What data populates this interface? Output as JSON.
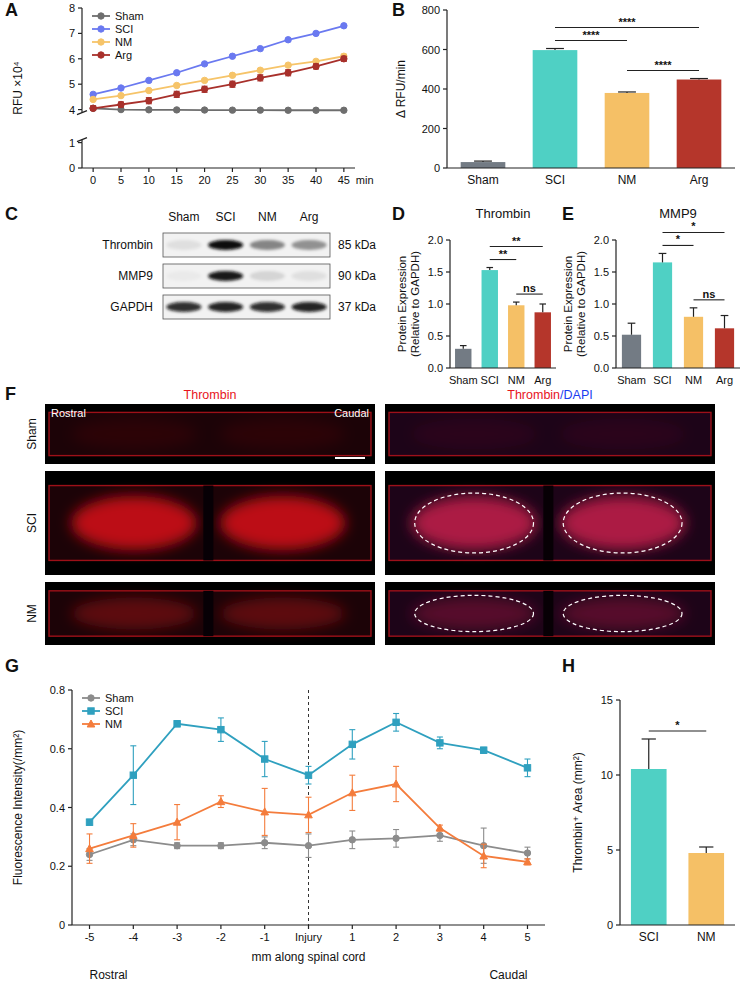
{
  "chart_data": [
    {
      "panel": "A",
      "type": "line",
      "y_label": "RFU ×10⁴",
      "x_label": "min",
      "x": [
        0,
        5,
        10,
        15,
        20,
        25,
        30,
        35,
        40,
        45
      ],
      "xlim": [
        -2,
        47
      ],
      "xticks": [
        0,
        5,
        10,
        15,
        20,
        25,
        30,
        35,
        40,
        45
      ],
      "ylim": [
        0,
        8
      ],
      "yticks": [
        0,
        1,
        4,
        5,
        6,
        7,
        8
      ],
      "legend": "upper left",
      "marker": "circle",
      "series": [
        {
          "name": "Sham",
          "color": "#6e6e6e",
          "values": [
            4.05,
            4.0,
            3.98,
            3.97,
            3.96,
            3.95,
            3.95,
            3.94,
            3.94,
            3.94
          ]
        },
        {
          "name": "SCI",
          "color": "#6a79f0",
          "values": [
            4.6,
            4.85,
            5.15,
            5.45,
            5.8,
            6.1,
            6.4,
            6.75,
            7.0,
            7.3
          ]
        },
        {
          "name": "NM",
          "color": "#f6c469",
          "values": [
            4.4,
            4.55,
            4.75,
            4.95,
            5.15,
            5.35,
            5.55,
            5.75,
            5.9,
            6.1
          ],
          "errors": [
            0.03,
            0.03,
            0.03,
            0.04,
            0.04,
            0.05,
            0.05,
            0.05,
            0.06,
            0.08
          ]
        },
        {
          "name": "Arg",
          "color": "#a8302b",
          "values": [
            4.05,
            4.2,
            4.35,
            4.6,
            4.8,
            5.0,
            5.25,
            5.45,
            5.7,
            6.0
          ],
          "errors": [
            0.1,
            0.1,
            0.12,
            0.12,
            0.12,
            0.12,
            0.12,
            0.12,
            0.1,
            0.1
          ]
        }
      ]
    },
    {
      "panel": "B",
      "type": "bar",
      "y_label": "Δ RFU/min",
      "categories": [
        "Sham",
        "SCI",
        "NM",
        "Arg"
      ],
      "values": [
        30,
        597,
        380,
        448
      ],
      "errors": [
        5,
        8,
        5,
        5
      ],
      "colors": [
        "#737b84",
        "#4fd0c4",
        "#f5c066",
        "#b5362b"
      ],
      "ylim": [
        0,
        800
      ],
      "yticks": [
        0,
        200,
        400,
        600,
        800
      ],
      "comparisons": [
        {
          "between": [
            "SCI",
            "Arg"
          ],
          "label": "****"
        },
        {
          "between": [
            "SCI",
            "NM"
          ],
          "label": "****"
        },
        {
          "between": [
            "NM",
            "Arg"
          ],
          "label": "****"
        }
      ]
    },
    {
      "panel": "D",
      "type": "bar",
      "title": "Thrombin",
      "y_label": [
        "Protein Expression",
        "(Relative to GAPDH)"
      ],
      "categories": [
        "Sham",
        "SCI",
        "NM",
        "Arg"
      ],
      "values": [
        0.3,
        1.53,
        0.98,
        0.87
      ],
      "errors": [
        0.05,
        0.04,
        0.05,
        0.13
      ],
      "colors": [
        "#737b84",
        "#4fd0c4",
        "#f5c066",
        "#b5362b"
      ],
      "ylim": [
        0,
        2
      ],
      "yticks": [
        {
          "value": 0,
          "label": "0.0"
        },
        0.5,
        {
          "value": 1,
          "label": "1.0"
        },
        1.5,
        {
          "value": 2,
          "label": "2.0"
        }
      ],
      "comparisons": [
        {
          "between": [
            "SCI",
            "Arg"
          ],
          "label": "**"
        },
        {
          "between": [
            "SCI",
            "NM"
          ],
          "label": "**"
        },
        {
          "between": [
            "NM",
            "Arg"
          ],
          "label": "ns"
        }
      ]
    },
    {
      "panel": "E",
      "type": "bar",
      "title": "MMP9",
      "y_label": [
        "Protein Expression",
        "(Relative to GAPDH)"
      ],
      "categories": [
        "Sham",
        "SCI",
        "NM",
        "Arg"
      ],
      "values": [
        0.52,
        1.65,
        0.8,
        0.62
      ],
      "errors": [
        0.18,
        0.14,
        0.14,
        0.2
      ],
      "colors": [
        "#737b84",
        "#4fd0c4",
        "#f5c066",
        "#b5362b"
      ],
      "ylim": [
        0,
        2
      ],
      "yticks": [
        {
          "value": 0,
          "label": "0.0"
        },
        0.5,
        {
          "value": 1,
          "label": "1.0"
        },
        1.5,
        {
          "value": 2,
          "label": "2.0"
        }
      ],
      "comparisons": [
        {
          "between": [
            "SCI",
            "Arg"
          ],
          "label": "*"
        },
        {
          "between": [
            "SCI",
            "NM"
          ],
          "label": "*"
        },
        {
          "between": [
            "NM",
            "Arg"
          ],
          "label": "ns"
        }
      ]
    },
    {
      "panel": "G",
      "type": "line",
      "y_label": "Fluorescence Intensity(/mm²)",
      "x_label": "mm along spinal cord",
      "annotations": [
        "Rostral",
        "Caudal"
      ],
      "vline": 0,
      "x": [
        -5,
        -4,
        -3,
        -2,
        -1,
        0,
        1,
        2,
        3,
        4,
        5
      ],
      "xlim": [
        -5.4,
        5.4
      ],
      "xticks": [
        -5,
        -4,
        -3,
        -2,
        -1,
        {
          "value": 0,
          "label": "Injury"
        },
        1,
        2,
        3,
        4,
        5
      ],
      "ylim": [
        0,
        0.8
      ],
      "yticks": [
        0,
        0.2,
        0.4,
        0.6,
        0.8
      ],
      "legend": "upper left",
      "series": [
        {
          "name": "Sham",
          "color": "#8c8c8c",
          "marker": "circle",
          "values": [
            0.24,
            0.29,
            0.27,
            0.27,
            0.28,
            0.27,
            0.29,
            0.295,
            0.305,
            0.27,
            0.245
          ],
          "errors": [
            0.02,
            0.02,
            0.01,
            0.01,
            0.02,
            0.04,
            0.03,
            0.03,
            0.02,
            0.06,
            0.02
          ]
        },
        {
          "name": "SCI",
          "color": "#2fa0bf",
          "marker": "square",
          "values": [
            0.35,
            0.51,
            0.685,
            0.665,
            0.565,
            0.51,
            0.615,
            0.69,
            0.62,
            0.595,
            0.535
          ],
          "errors": [
            0.01,
            0.1,
            0.01,
            0.04,
            0.06,
            0.03,
            0.05,
            0.03,
            0.02,
            0.01,
            0.03
          ]
        },
        {
          "name": "NM",
          "color": "#f47c3c",
          "marker": "triangle",
          "values": [
            0.26,
            0.305,
            0.35,
            0.42,
            0.385,
            0.375,
            0.45,
            0.48,
            0.33,
            0.235,
            0.215
          ],
          "errors": [
            0.05,
            0.04,
            0.06,
            0.02,
            0.08,
            0.06,
            0.06,
            0.06,
            0.01,
            0.04,
            0.01
          ]
        }
      ]
    },
    {
      "panel": "H",
      "type": "bar",
      "y_label": "Thrombin⁺ Area (mm²)",
      "categories": [
        "SCI",
        "NM"
      ],
      "values": [
        10.4,
        4.8
      ],
      "errors": [
        2.0,
        0.4
      ],
      "colors": [
        "#4fd0c4",
        "#f5c066"
      ],
      "ylim": [
        0,
        15
      ],
      "yticks": [
        0,
        5,
        10,
        15
      ],
      "comparisons": [
        {
          "between": [
            "SCI",
            "NM"
          ],
          "label": "*"
        }
      ]
    }
  ],
  "blot": {
    "panel": "C",
    "lanes": [
      "Sham",
      "SCI",
      "NM",
      "Arg"
    ],
    "rows": [
      {
        "protein": "Thrombin",
        "size": "85 kDa",
        "intensity": [
          0.08,
          1,
          0.45,
          0.4
        ]
      },
      {
        "protein": "MMP9",
        "size": "90 kDa",
        "intensity": [
          0.03,
          0.95,
          0.12,
          0.08
        ]
      },
      {
        "protein": "GAPDH",
        "size": "37 kDa",
        "intensity": [
          0.85,
          0.9,
          0.85,
          0.9
        ]
      }
    ]
  },
  "images": {
    "panel": "F",
    "columns": [
      {
        "parts": [
          {
            "text": "Thrombin",
            "color": "#e8141c"
          }
        ]
      },
      {
        "parts": [
          {
            "text": "Thrombin",
            "color": "#e8141c"
          },
          {
            "text": "/DAPI",
            "color": "#1a3cf0"
          }
        ]
      }
    ],
    "ends": [
      "Rostral",
      "Caudal"
    ],
    "rows": [
      {
        "label": "Sham",
        "signal": 0.1,
        "injury": false
      },
      {
        "label": "SCI",
        "signal": 1,
        "injury": true
      },
      {
        "label": "NM",
        "signal": 0.4,
        "injury": true
      }
    ]
  }
}
